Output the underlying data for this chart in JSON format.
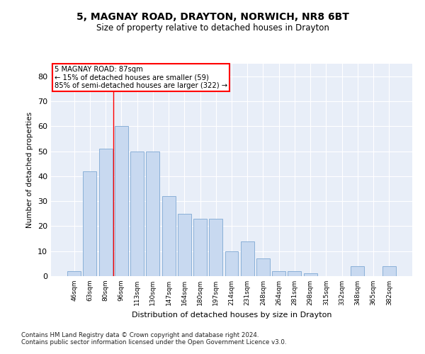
{
  "title_line1": "5, MAGNAY ROAD, DRAYTON, NORWICH, NR8 6BT",
  "title_line2": "Size of property relative to detached houses in Drayton",
  "xlabel": "Distribution of detached houses by size in Drayton",
  "ylabel": "Number of detached properties",
  "bar_labels": [
    "46sqm",
    "63sqm",
    "80sqm",
    "96sqm",
    "113sqm",
    "130sqm",
    "147sqm",
    "164sqm",
    "180sqm",
    "197sqm",
    "214sqm",
    "231sqm",
    "248sqm",
    "264sqm",
    "281sqm",
    "298sqm",
    "315sqm",
    "332sqm",
    "348sqm",
    "365sqm",
    "382sqm"
  ],
  "bar_heights": [
    2,
    42,
    51,
    60,
    50,
    50,
    32,
    25,
    23,
    23,
    10,
    14,
    7,
    2,
    2,
    1,
    0,
    0,
    4,
    0,
    4
  ],
  "bar_color": "#c8d9f0",
  "bar_edge_color": "#8ab0d8",
  "background_color": "#e8eef8",
  "grid_color": "#ffffff",
  "annotation_line1": "5 MAGNAY ROAD: 87sqm",
  "annotation_line2": "← 15% of detached houses are smaller (59)",
  "annotation_line3": "85% of semi-detached houses are larger (322) →",
  "red_line_x": 2.5,
  "ylim": [
    0,
    85
  ],
  "yticks": [
    0,
    10,
    20,
    30,
    40,
    50,
    60,
    70,
    80
  ],
  "footnote1": "Contains HM Land Registry data © Crown copyright and database right 2024.",
  "footnote2": "Contains public sector information licensed under the Open Government Licence v3.0."
}
